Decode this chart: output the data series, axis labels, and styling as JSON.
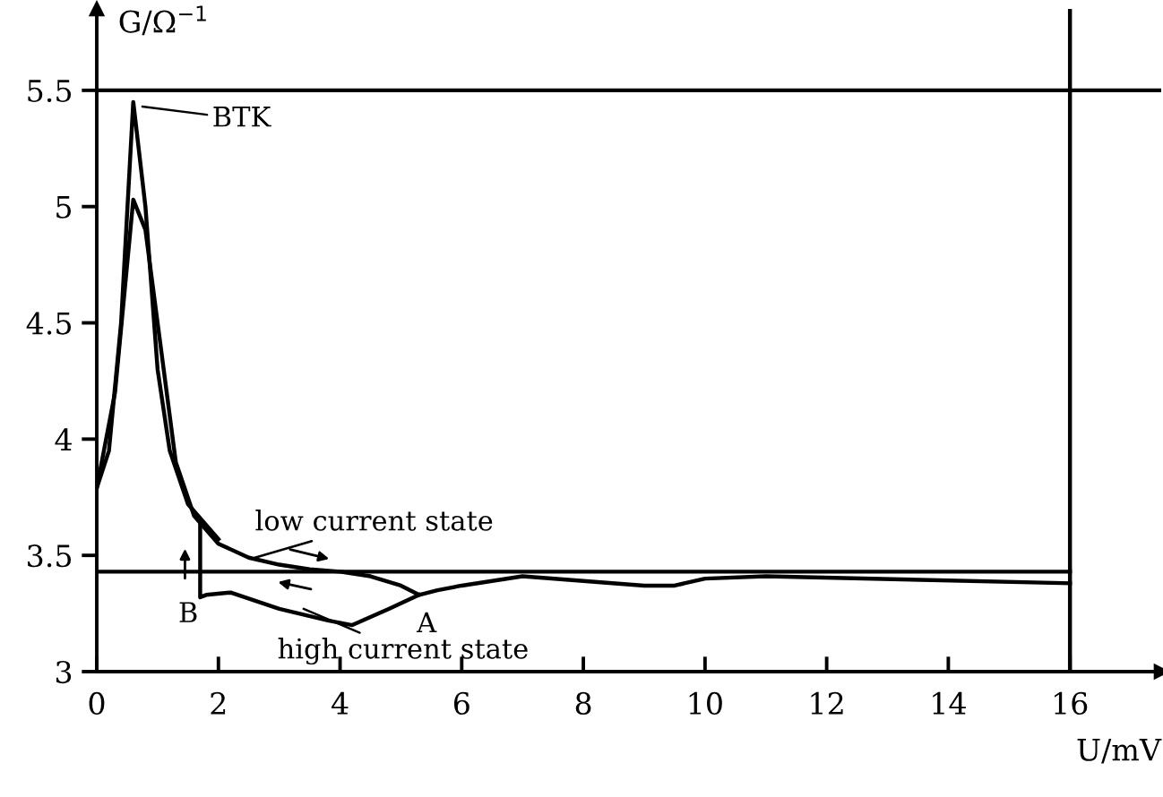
{
  "chart_data": {
    "type": "line",
    "xlabel": "U/mV",
    "ylabel": "G/Ω$^{−1}$",
    "xlim": [
      0,
      17.5
    ],
    "ylim": [
      3,
      5.85
    ],
    "xticks": [
      0,
      2,
      4,
      6,
      8,
      10,
      12,
      14,
      16
    ],
    "yticks": [
      3,
      3.5,
      4,
      4.5,
      5,
      5.5
    ],
    "grid": false,
    "legend": false,
    "marker": "none",
    "line_style": "solid",
    "series": [
      {
        "color": "#000000",
        "x": [
          0,
          0.2,
          0.4,
          0.6,
          0.8,
          1.0,
          1.2,
          1.5,
          2
        ],
        "values": [
          3.79,
          3.95,
          4.5,
          5.45,
          5.0,
          4.3,
          3.95,
          3.72,
          3.57
        ]
      },
      {
        "color": "#000000",
        "x": [
          0,
          0.3,
          0.6,
          0.8,
          1.0,
          1.3,
          1.6,
          2,
          2.5,
          3,
          3.5,
          4,
          4.5,
          5,
          5.3,
          5.6,
          6,
          7,
          8,
          9,
          9.5,
          10,
          11,
          16
        ],
        "values": [
          3.79,
          4.2,
          5.03,
          4.9,
          4.5,
          3.9,
          3.67,
          3.55,
          3.49,
          3.46,
          3.44,
          3.43,
          3.41,
          3.37,
          3.33,
          3.35,
          3.37,
          3.41,
          3.39,
          3.37,
          3.37,
          3.4,
          3.41,
          3.38
        ]
      },
      {
        "color": "#000000",
        "x": [
          5.3,
          4.8,
          4.2,
          3.8,
          3,
          2.2,
          1.8,
          1.7,
          1.7
        ],
        "values": [
          3.33,
          3.27,
          3.2,
          3.22,
          3.27,
          3.34,
          3.33,
          3.32,
          3.65
        ]
      },
      {
        "color": "#000000",
        "x": [
          0,
          16
        ],
        "values": [
          3.43,
          3.43
        ]
      }
    ],
    "ref_lines": [
      {
        "axis": "y",
        "value": 5.5,
        "color": "#000000"
      },
      {
        "axis": "x",
        "value": 16,
        "color": "#000000"
      }
    ],
    "annotations": [
      {
        "text": "BTK",
        "x": 0.75,
        "y": 5.43
      },
      {
        "text": "low current state",
        "x": 2.6,
        "y": 3.49
      },
      {
        "text": "high current state",
        "x": 3.4,
        "y": 3.27
      },
      {
        "text": "A",
        "x": 5.3,
        "y": 3.33
      },
      "B"
    ]
  }
}
